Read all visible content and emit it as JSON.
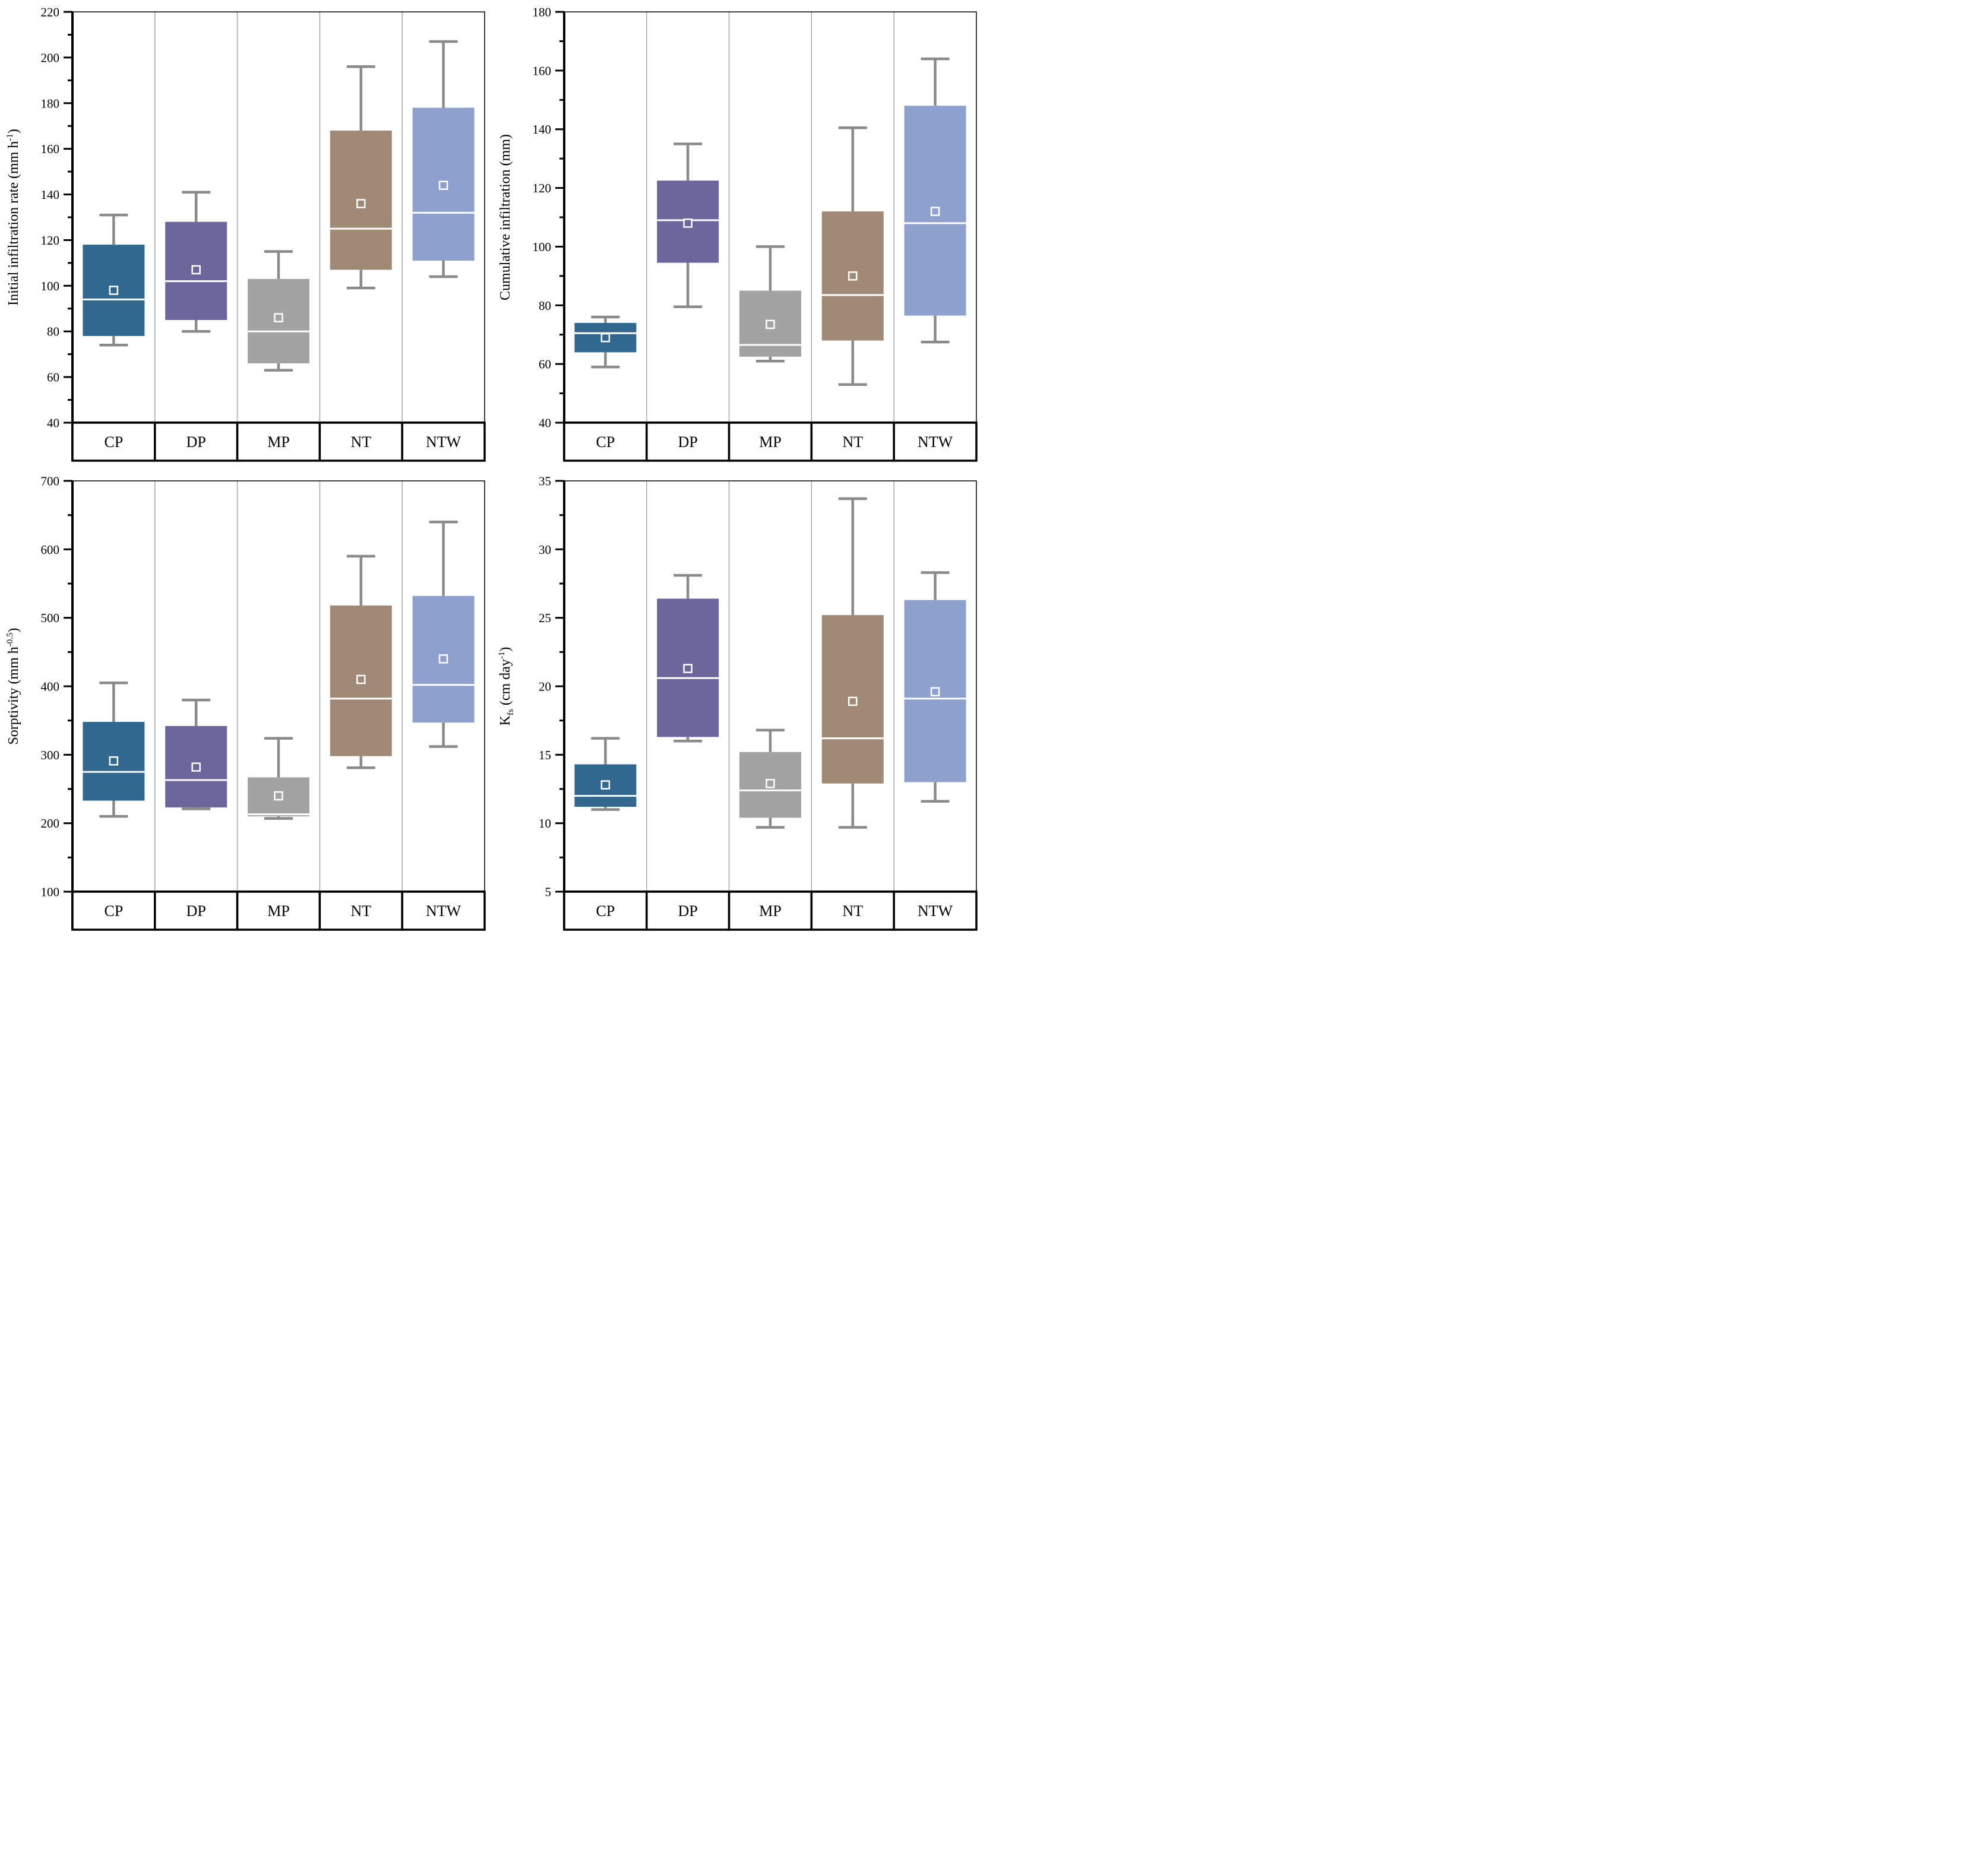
{
  "figure": {
    "description": "Four box plots of soil infiltration properties under five tillage treatments",
    "categories": [
      "CP",
      "DP",
      "MP",
      "NT",
      "NTW"
    ]
  },
  "style": {
    "box_colors": [
      "#31688f",
      "#6b679c",
      "#a3a3a3",
      "#a18a75",
      "#8ea1ce"
    ],
    "whisker_color": "#8a8a8a",
    "separator_color": "#a6a6a6",
    "axis_color": "#000000",
    "median_color": "#ffffff",
    "mean_marker_stroke": "#ffffff",
    "background": "#ffffff"
  },
  "chart_data": [
    {
      "type": "box",
      "id": "initial-infiltration-rate",
      "ylabel": "Initial infiltration rate (mm h-1)",
      "ylabel_parts": [
        {
          "text": "Initial infiltration rate (mm h"
        },
        {
          "text": "-1",
          "style": "sup"
        },
        {
          "text": ")"
        }
      ],
      "ymin": 40,
      "ymax": 220,
      "ymajor": 20,
      "yminor": 10,
      "categories": [
        "CP",
        "DP",
        "MP",
        "NT",
        "NTW"
      ],
      "boxes": [
        {
          "category": "CP",
          "low": 74,
          "q1": 78,
          "median": 94,
          "mean": 98,
          "q3": 118,
          "high": 131
        },
        {
          "category": "DP",
          "low": 80,
          "q1": 85,
          "median": 102,
          "mean": 107,
          "q3": 128,
          "high": 141
        },
        {
          "category": "MP",
          "low": 63,
          "q1": 66,
          "median": 80,
          "mean": 86,
          "q3": 103,
          "high": 115
        },
        {
          "category": "NT",
          "low": 99,
          "q1": 107,
          "median": 125,
          "mean": 136,
          "q3": 168,
          "high": 196
        },
        {
          "category": "NTW",
          "low": 104,
          "q1": 111,
          "median": 132,
          "mean": 144,
          "q3": 178,
          "high": 207
        }
      ]
    },
    {
      "type": "box",
      "id": "cumulative-infiltration",
      "ylabel": "Cumulative infiltration (mm)",
      "ylabel_parts": [
        {
          "text": "Cumulative infiltration (mm)"
        }
      ],
      "ymin": 40,
      "ymax": 180,
      "ymajor": 20,
      "yminor": 10,
      "categories": [
        "CP",
        "DP",
        "MP",
        "NT",
        "NTW"
      ],
      "boxes": [
        {
          "category": "CP",
          "low": 59,
          "q1": 64,
          "median": 70.5,
          "mean": 69,
          "q3": 74,
          "high": 76
        },
        {
          "category": "DP",
          "low": 79.5,
          "q1": 94.5,
          "median": 109,
          "mean": 108,
          "q3": 122.5,
          "high": 135
        },
        {
          "category": "MP",
          "low": 61,
          "q1": 62.5,
          "median": 66.5,
          "mean": 73.5,
          "q3": 85,
          "high": 100
        },
        {
          "category": "NT",
          "low": 53,
          "q1": 68,
          "median": 83.5,
          "mean": 90,
          "q3": 112,
          "high": 140.5
        },
        {
          "category": "NTW",
          "low": 67.5,
          "q1": 76.5,
          "median": 108,
          "mean": 112,
          "q3": 148,
          "high": 164
        }
      ]
    },
    {
      "type": "box",
      "id": "sorptivity",
      "ylabel": "Sorptivity (mm h-0.5)",
      "ylabel_parts": [
        {
          "text": "Sorptivity (mm h"
        },
        {
          "text": "-0.5",
          "style": "sup"
        },
        {
          "text": ")"
        }
      ],
      "ymin": 100,
      "ymax": 700,
      "ymajor": 100,
      "yminor": 50,
      "categories": [
        "CP",
        "DP",
        "MP",
        "NT",
        "NTW"
      ],
      "boxes": [
        {
          "category": "CP",
          "low": 210,
          "q1": 233,
          "median": 275,
          "mean": 291,
          "q3": 348,
          "high": 405
        },
        {
          "category": "DP",
          "low": 221,
          "q1": 223,
          "median": 263,
          "mean": 282,
          "q3": 342,
          "high": 380
        },
        {
          "category": "MP",
          "low": 207,
          "q1": 210,
          "median": 213,
          "mean": 240,
          "q3": 267,
          "high": 324
        },
        {
          "category": "NT",
          "low": 281,
          "q1": 298,
          "median": 382,
          "mean": 410,
          "q3": 518,
          "high": 590
        },
        {
          "category": "NTW",
          "low": 312,
          "q1": 347,
          "median": 402,
          "mean": 440,
          "q3": 532,
          "high": 640
        }
      ]
    },
    {
      "type": "box",
      "id": "kfs",
      "ylabel": "Kfs (cm day-1)",
      "ylabel_parts": [
        {
          "text": "K"
        },
        {
          "text": "fs",
          "style": "sub"
        },
        {
          "text": " (cm day"
        },
        {
          "text": "-1",
          "style": "sup"
        },
        {
          "text": ")"
        }
      ],
      "ymin": 5,
      "ymax": 35,
      "ymajor": 5,
      "yminor": 2.5,
      "categories": [
        "CP",
        "DP",
        "MP",
        "NT",
        "NTW"
      ],
      "boxes": [
        {
          "category": "CP",
          "low": 11.0,
          "q1": 11.2,
          "median": 12.0,
          "mean": 12.8,
          "q3": 14.3,
          "high": 16.2
        },
        {
          "category": "DP",
          "low": 16.0,
          "q1": 16.3,
          "median": 20.6,
          "mean": 21.3,
          "q3": 26.4,
          "high": 28.1
        },
        {
          "category": "MP",
          "low": 9.7,
          "q1": 10.4,
          "median": 12.4,
          "mean": 12.9,
          "q3": 15.2,
          "high": 16.8
        },
        {
          "category": "NT",
          "low": 9.7,
          "q1": 12.9,
          "median": 16.2,
          "mean": 18.9,
          "q3": 25.2,
          "high": 33.7
        },
        {
          "category": "NTW",
          "low": 11.6,
          "q1": 13.0,
          "median": 19.1,
          "mean": 19.6,
          "q3": 26.3,
          "high": 28.3
        }
      ]
    }
  ]
}
